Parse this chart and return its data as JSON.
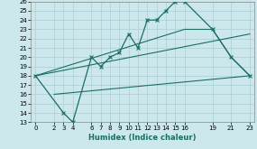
{
  "xlabel": "Humidex (Indice chaleur)",
  "bg_color": "#cce8ed",
  "grid_color": "#aacdd5",
  "line_color": "#1a6e64",
  "ylim": [
    13,
    26
  ],
  "xlim": [
    -0.5,
    23.5
  ],
  "yticks": [
    13,
    14,
    15,
    16,
    17,
    18,
    19,
    20,
    21,
    22,
    23,
    24,
    25,
    26
  ],
  "xticks": [
    0,
    2,
    3,
    4,
    6,
    7,
    8,
    9,
    10,
    11,
    12,
    13,
    14,
    15,
    16,
    19,
    21,
    23
  ],
  "line1_x": [
    0,
    3,
    4,
    6,
    7,
    8,
    9,
    10,
    11,
    12,
    13,
    14,
    15,
    16,
    19,
    21,
    23
  ],
  "line1_y": [
    18,
    14,
    13,
    20,
    19,
    20,
    20.5,
    22.5,
    21,
    24,
    24,
    25,
    26,
    26,
    23,
    20,
    18
  ],
  "line2_x": [
    0,
    16,
    19,
    21,
    23
  ],
  "line2_y": [
    18,
    23,
    23,
    20,
    18
  ],
  "line3_x": [
    0,
    23
  ],
  "line3_y": [
    18,
    22.5
  ],
  "line4_x": [
    2,
    23
  ],
  "line4_y": [
    16,
    18
  ]
}
